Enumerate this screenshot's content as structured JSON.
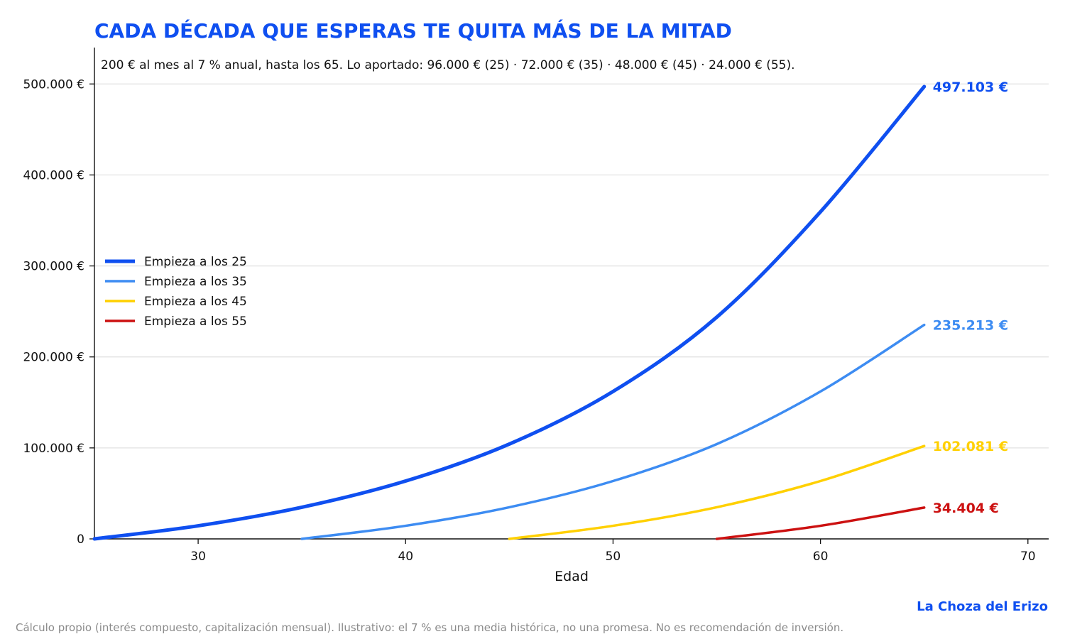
{
  "chart_data": {
    "type": "line",
    "title": "CADA DÉCADA QUE ESPERAS TE QUITA MÁS DE LA MITAD",
    "subtitle": "200 € al mes al 7 % anual, hasta los 65. Lo aportado: 96.000 € (25) · 72.000 € (35) · 48.000 € (45) · 24.000 € (55).",
    "xlabel": "Edad",
    "ylabel": "",
    "xlim": [
      25,
      71
    ],
    "ylim": [
      0,
      540000
    ],
    "x_ticks": [
      {
        "value": 30,
        "label": "30"
      },
      {
        "value": 40,
        "label": "40"
      },
      {
        "value": 50,
        "label": "50"
      },
      {
        "value": 60,
        "label": "60"
      },
      {
        "value": 70,
        "label": "70"
      }
    ],
    "y_ticks": [
      {
        "value": 0,
        "label": "0"
      },
      {
        "value": 100000,
        "label": "100.000 €"
      },
      {
        "value": 200000,
        "label": "200.000 €"
      },
      {
        "value": 300000,
        "label": "300.000 €"
      },
      {
        "value": 400000,
        "label": "400.000 €"
      },
      {
        "value": 500000,
        "label": "500.000 €"
      }
    ],
    "grid": "horizontal",
    "legend_position": "center-left",
    "series": [
      {
        "name": "Empieza a los 25",
        "color": "#0f4ff0",
        "x": [
          25,
          30,
          35,
          40,
          45,
          50,
          55,
          60,
          65
        ],
        "values": [
          0,
          14400,
          34800,
          63600,
          104200,
          162000,
          243700,
          359500,
          497103
        ],
        "end_label": "497.103 €"
      },
      {
        "name": "Empieza a los 35",
        "color": "#3d8cf2",
        "x": [
          35,
          40,
          45,
          50,
          55,
          60,
          65
        ],
        "values": [
          0,
          14400,
          34800,
          63600,
          104200,
          162000,
          235213
        ],
        "end_label": "235.213 €"
      },
      {
        "name": "Empieza a los 45",
        "color": "#ffd000",
        "x": [
          45,
          50,
          55,
          60,
          65
        ],
        "values": [
          0,
          14400,
          34800,
          63600,
          102081
        ],
        "end_label": "102.081 €"
      },
      {
        "name": "Empieza a los 55",
        "color": "#cc1111",
        "x": [
          55,
          60,
          65
        ],
        "values": [
          0,
          14400,
          34404
        ],
        "end_label": "34.404 €"
      }
    ]
  },
  "brand": {
    "text": "La Choza del Erizo",
    "color": "#0f4ff0"
  },
  "footnote": "Cálculo propio (interés compuesto, capitalización mensual). Ilustrativo: el 7 % es una media histórica, no una promesa. No es recomendación de inversión.",
  "colors": {
    "title": "#0f4ff0",
    "axis": "#111111",
    "grid": "#e2e2e2"
  }
}
